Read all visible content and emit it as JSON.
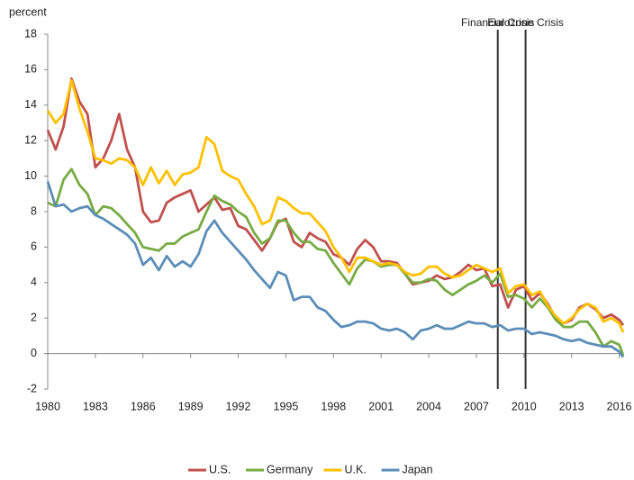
{
  "chart_data": {
    "type": "line",
    "y_label": "percent",
    "x": [
      1980,
      1980.5,
      1981,
      1981.5,
      1982,
      1982.5,
      1983,
      1983.5,
      1984,
      1984.5,
      1985,
      1985.5,
      1986,
      1986.5,
      1987,
      1987.5,
      1988,
      1988.5,
      1989,
      1989.5,
      1990,
      1990.5,
      1991,
      1991.5,
      1992,
      1992.5,
      1993,
      1993.5,
      1994,
      1994.5,
      1995,
      1995.5,
      1996,
      1996.5,
      1997,
      1997.5,
      1998,
      1998.5,
      1999,
      1999.5,
      2000,
      2000.5,
      2001,
      2001.5,
      2002,
      2002.5,
      2003,
      2003.5,
      2004,
      2004.5,
      2005,
      2005.5,
      2006,
      2006.5,
      2007,
      2007.5,
      2008,
      2008.5,
      2009,
      2009.5,
      2010,
      2010.5,
      2011,
      2011.5,
      2012,
      2012.5,
      2013,
      2013.5,
      2014,
      2014.5,
      2015,
      2015.5,
      2016,
      2016.25
    ],
    "series": [
      {
        "name": "U.S.",
        "color": "#c0504d",
        "values": [
          12.6,
          11.5,
          12.8,
          15.5,
          14.2,
          13.5,
          10.5,
          11.0,
          12.0,
          13.5,
          11.5,
          10.5,
          8.0,
          7.4,
          7.5,
          8.5,
          8.8,
          9.0,
          9.2,
          8.0,
          8.4,
          8.8,
          8.1,
          8.2,
          7.2,
          7.0,
          6.4,
          5.8,
          6.5,
          7.4,
          7.6,
          6.3,
          6.0,
          6.8,
          6.5,
          6.3,
          5.6,
          5.4,
          5.0,
          5.9,
          6.4,
          6.0,
          5.2,
          5.2,
          5.1,
          4.5,
          3.9,
          4.0,
          4.1,
          4.4,
          4.2,
          4.3,
          4.6,
          5.0,
          4.7,
          4.8,
          3.8,
          3.9,
          2.6,
          3.6,
          3.8,
          3.0,
          3.4,
          2.8,
          2.0,
          1.7,
          1.9,
          2.6,
          2.8,
          2.5,
          2.0,
          2.2,
          1.9,
          1.6
        ]
      },
      {
        "name": "Germany",
        "color": "#77ab43",
        "values": [
          8.5,
          8.3,
          9.8,
          10.4,
          9.5,
          9.0,
          7.8,
          8.3,
          8.2,
          7.8,
          7.3,
          6.8,
          6.0,
          5.9,
          5.8,
          6.2,
          6.2,
          6.6,
          6.8,
          7.0,
          8.0,
          8.9,
          8.6,
          8.4,
          8.0,
          7.7,
          6.8,
          6.2,
          6.5,
          7.5,
          7.5,
          6.8,
          6.3,
          6.3,
          5.9,
          5.8,
          5.1,
          4.5,
          3.9,
          4.8,
          5.3,
          5.2,
          4.9,
          5.0,
          5.0,
          4.5,
          4.0,
          4.0,
          4.2,
          4.1,
          3.6,
          3.3,
          3.6,
          3.9,
          4.1,
          4.4,
          4.0,
          4.5,
          3.2,
          3.3,
          3.1,
          2.6,
          3.1,
          2.6,
          1.9,
          1.5,
          1.5,
          1.8,
          1.8,
          1.2,
          0.4,
          0.7,
          0.5,
          -0.1
        ]
      },
      {
        "name": "U.K.",
        "color": "#ffc000",
        "values": [
          13.7,
          13.0,
          13.5,
          15.4,
          13.8,
          12.5,
          11.0,
          10.9,
          10.7,
          11.0,
          10.9,
          10.5,
          9.5,
          10.5,
          9.6,
          10.3,
          9.5,
          10.1,
          10.2,
          10.5,
          12.2,
          11.8,
          10.3,
          10.0,
          9.8,
          9.0,
          8.3,
          7.3,
          7.5,
          8.8,
          8.6,
          8.2,
          7.9,
          7.9,
          7.4,
          6.9,
          6.0,
          5.4,
          4.6,
          5.4,
          5.4,
          5.2,
          5.0,
          5.1,
          5.0,
          4.6,
          4.4,
          4.5,
          4.9,
          4.9,
          4.5,
          4.3,
          4.4,
          4.7,
          5.0,
          4.8,
          4.6,
          4.8,
          3.4,
          3.8,
          3.9,
          3.3,
          3.5,
          2.7,
          2.1,
          1.7,
          2.0,
          2.5,
          2.8,
          2.6,
          1.8,
          2.0,
          1.7,
          1.2
        ]
      },
      {
        "name": "Japan",
        "color": "#5b8db8",
        "values": [
          9.7,
          8.3,
          8.4,
          8.0,
          8.2,
          8.3,
          7.8,
          7.6,
          7.3,
          7.0,
          6.7,
          6.2,
          5.0,
          5.4,
          4.7,
          5.5,
          4.9,
          5.2,
          4.9,
          5.6,
          6.9,
          7.5,
          6.8,
          6.3,
          5.8,
          5.3,
          4.7,
          4.2,
          3.7,
          4.6,
          4.4,
          3.0,
          3.2,
          3.2,
          2.6,
          2.4,
          1.9,
          1.5,
          1.6,
          1.8,
          1.8,
          1.7,
          1.4,
          1.3,
          1.4,
          1.2,
          0.8,
          1.3,
          1.4,
          1.6,
          1.4,
          1.4,
          1.6,
          1.8,
          1.7,
          1.7,
          1.5,
          1.6,
          1.3,
          1.4,
          1.4,
          1.1,
          1.2,
          1.1,
          1.0,
          0.8,
          0.7,
          0.8,
          0.6,
          0.5,
          0.4,
          0.4,
          0.1,
          -0.2
        ]
      }
    ],
    "annotations": [
      {
        "text": "Financial Crisis",
        "x": 2008.35
      },
      {
        "text": "Eurozone Crisis",
        "x": 2010.1
      }
    ],
    "xlim": [
      1980,
      2016.25
    ],
    "xticks": [
      1980,
      1983,
      1986,
      1989,
      1992,
      1995,
      1998,
      2001,
      2004,
      2007,
      2010,
      2013,
      2016
    ],
    "ylim": [
      -2,
      18
    ],
    "yticks": [
      -2,
      0,
      2,
      4,
      6,
      8,
      10,
      12,
      14,
      16,
      18
    ],
    "grid": false,
    "legend": "bottom"
  }
}
